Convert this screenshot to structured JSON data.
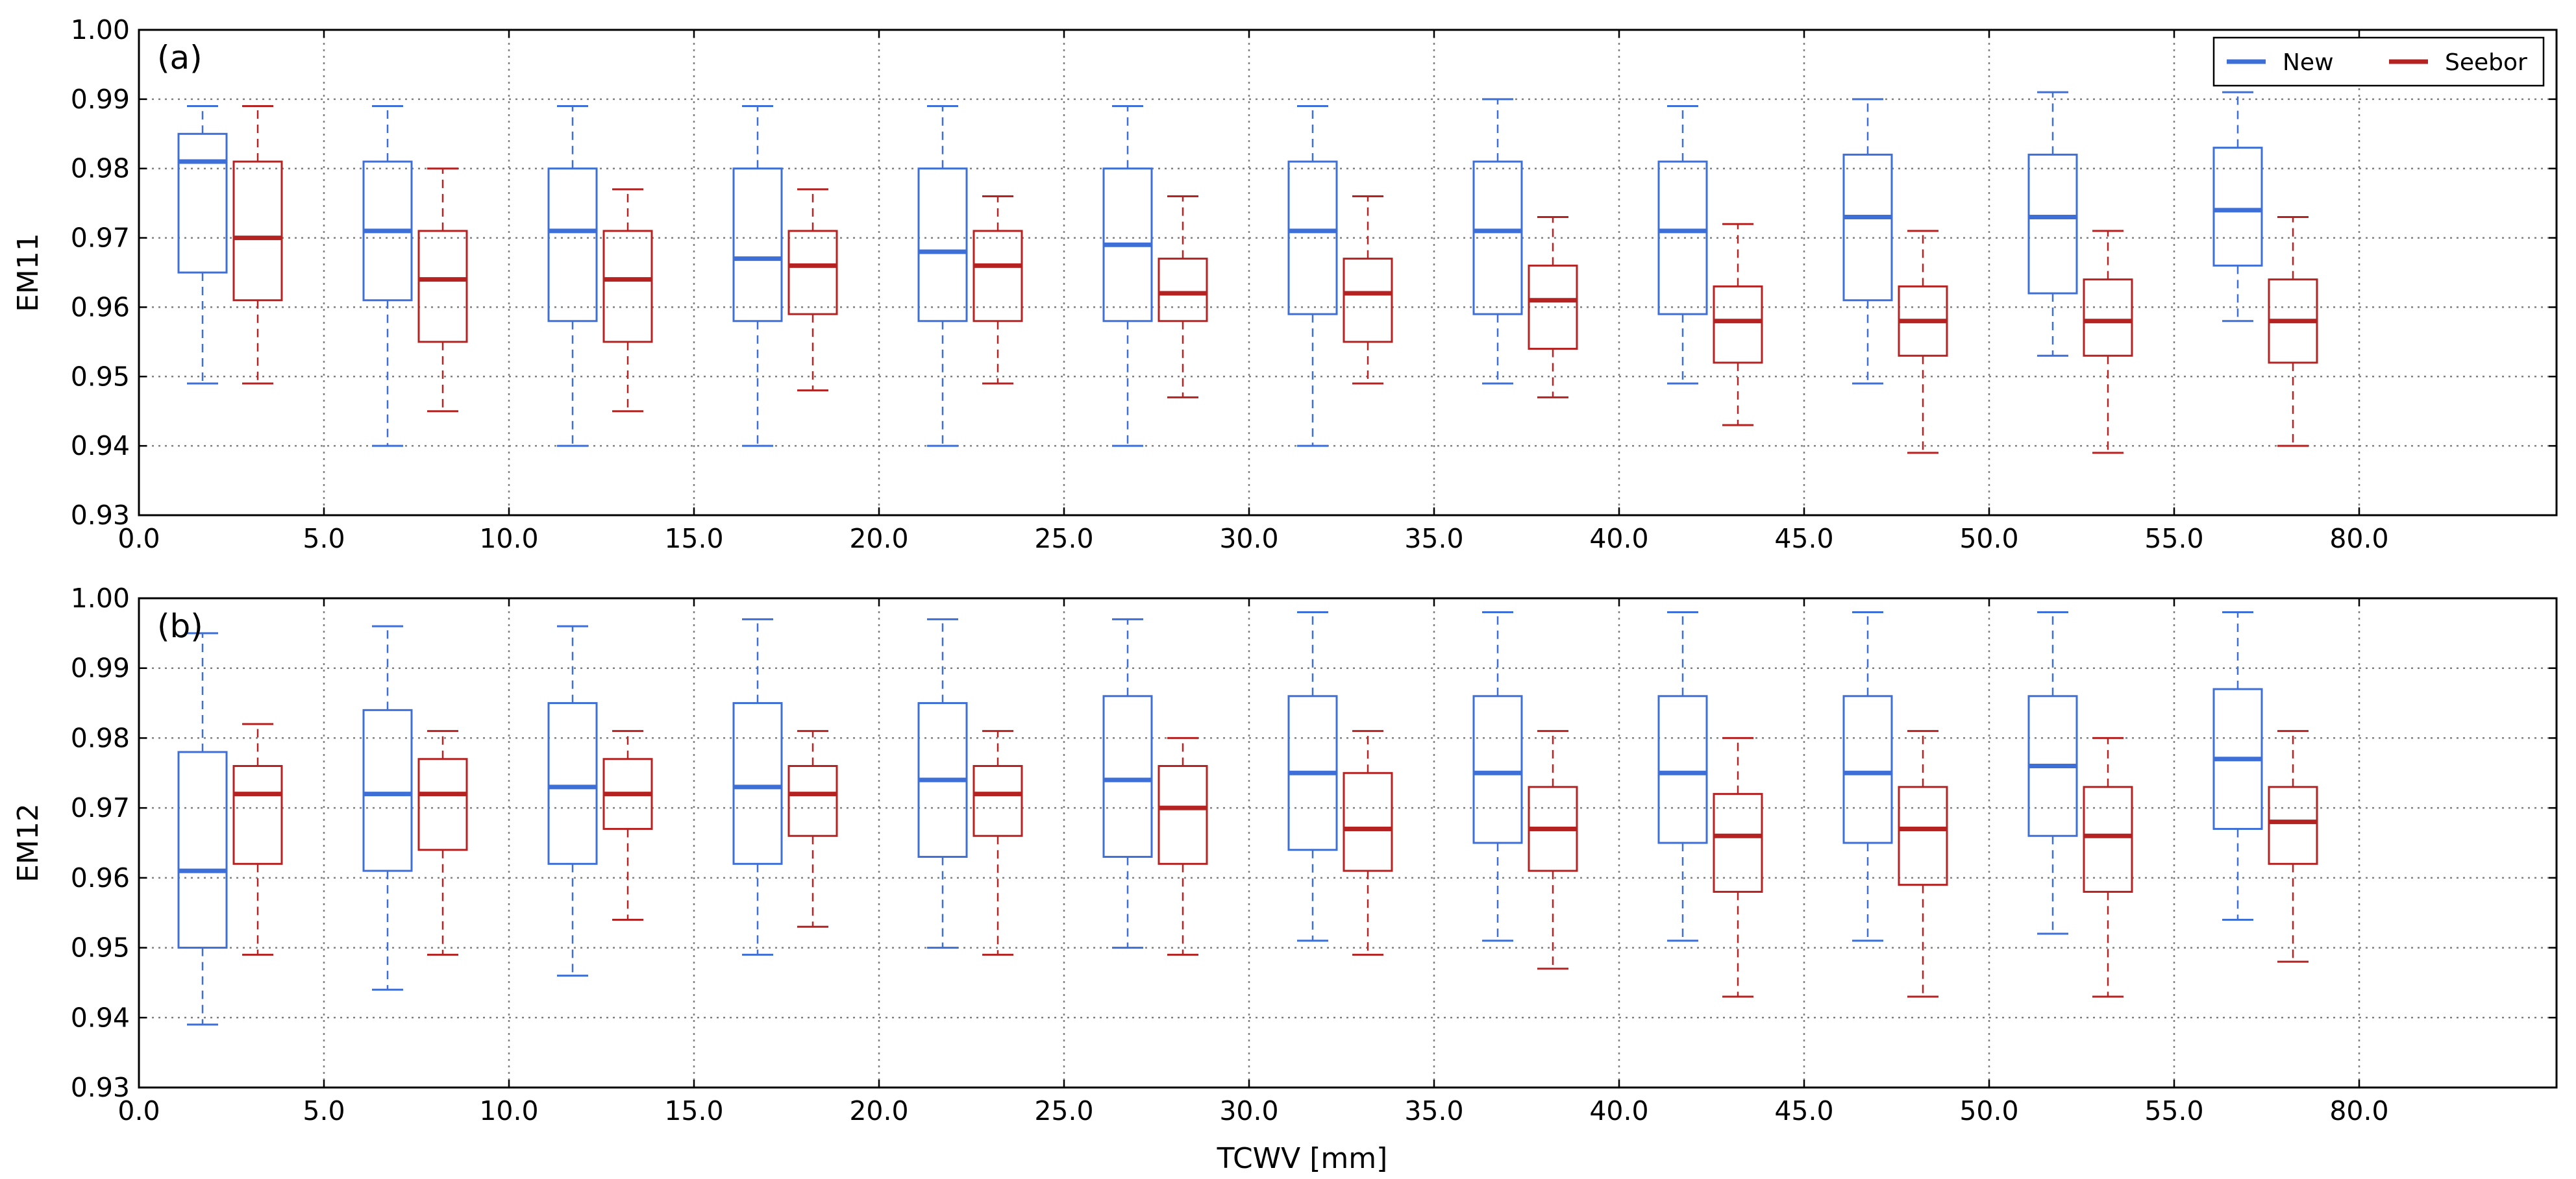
{
  "chart_data": [
    {
      "type": "box",
      "panel_label": "(a)",
      "ylabel": "EM11",
      "xlabel": "",
      "ylim": [
        0.93,
        1.0
      ],
      "yticks": [
        "0.93",
        "0.94",
        "0.95",
        "0.96",
        "0.97",
        "0.98",
        "0.99",
        "1.00"
      ],
      "xticks": [
        "0.0",
        "5.0",
        "10.0",
        "15.0",
        "20.0",
        "25.0",
        "30.0",
        "35.0",
        "40.0",
        "45.0",
        "50.0",
        "55.0",
        "80.0"
      ],
      "grid": true,
      "legend": {
        "placement": "top-right",
        "entries": [
          "New",
          "Seebor"
        ]
      },
      "series": [
        {
          "name": "New",
          "color": "#3d6fd6",
          "boxes": [
            {
              "bin": "0.0-5.0",
              "whislo": 0.949,
              "q1": 0.965,
              "median": 0.981,
              "q3": 0.985,
              "whishi": 0.989
            },
            {
              "bin": "5.0-10.0",
              "whislo": 0.94,
              "q1": 0.961,
              "median": 0.971,
              "q3": 0.981,
              "whishi": 0.989
            },
            {
              "bin": "10.0-15.0",
              "whislo": 0.94,
              "q1": 0.958,
              "median": 0.971,
              "q3": 0.98,
              "whishi": 0.989
            },
            {
              "bin": "15.0-20.0",
              "whislo": 0.94,
              "q1": 0.958,
              "median": 0.967,
              "q3": 0.98,
              "whishi": 0.989
            },
            {
              "bin": "20.0-25.0",
              "whislo": 0.94,
              "q1": 0.958,
              "median": 0.968,
              "q3": 0.98,
              "whishi": 0.989
            },
            {
              "bin": "25.0-30.0",
              "whislo": 0.94,
              "q1": 0.958,
              "median": 0.969,
              "q3": 0.98,
              "whishi": 0.989
            },
            {
              "bin": "30.0-35.0",
              "whislo": 0.94,
              "q1": 0.959,
              "median": 0.971,
              "q3": 0.981,
              "whishi": 0.989
            },
            {
              "bin": "35.0-40.0",
              "whislo": 0.949,
              "q1": 0.959,
              "median": 0.971,
              "q3": 0.981,
              "whishi": 0.99
            },
            {
              "bin": "40.0-45.0",
              "whislo": 0.949,
              "q1": 0.959,
              "median": 0.971,
              "q3": 0.981,
              "whishi": 0.989
            },
            {
              "bin": "45.0-50.0",
              "whislo": 0.949,
              "q1": 0.961,
              "median": 0.973,
              "q3": 0.982,
              "whishi": 0.99
            },
            {
              "bin": "50.0-55.0",
              "whislo": 0.953,
              "q1": 0.962,
              "median": 0.973,
              "q3": 0.982,
              "whishi": 0.991
            },
            {
              "bin": "55.0-80.0",
              "whislo": 0.958,
              "q1": 0.966,
              "median": 0.974,
              "q3": 0.983,
              "whishi": 0.991
            }
          ]
        },
        {
          "name": "Seebor",
          "color": "#b52222",
          "boxes": [
            {
              "bin": "0.0-5.0",
              "whislo": 0.949,
              "q1": 0.961,
              "median": 0.97,
              "q3": 0.981,
              "whishi": 0.989
            },
            {
              "bin": "5.0-10.0",
              "whislo": 0.945,
              "q1": 0.955,
              "median": 0.964,
              "q3": 0.971,
              "whishi": 0.98
            },
            {
              "bin": "10.0-15.0",
              "whislo": 0.945,
              "q1": 0.955,
              "median": 0.964,
              "q3": 0.971,
              "whishi": 0.977
            },
            {
              "bin": "15.0-20.0",
              "whislo": 0.948,
              "q1": 0.959,
              "median": 0.966,
              "q3": 0.971,
              "whishi": 0.977
            },
            {
              "bin": "20.0-25.0",
              "whislo": 0.949,
              "q1": 0.958,
              "median": 0.966,
              "q3": 0.971,
              "whishi": 0.976
            },
            {
              "bin": "25.0-30.0",
              "whislo": 0.947,
              "q1": 0.958,
              "median": 0.962,
              "q3": 0.967,
              "whishi": 0.976
            },
            {
              "bin": "30.0-35.0",
              "whislo": 0.949,
              "q1": 0.955,
              "median": 0.962,
              "q3": 0.967,
              "whishi": 0.976
            },
            {
              "bin": "35.0-40.0",
              "whislo": 0.947,
              "q1": 0.954,
              "median": 0.961,
              "q3": 0.966,
              "whishi": 0.973
            },
            {
              "bin": "40.0-45.0",
              "whislo": 0.943,
              "q1": 0.952,
              "median": 0.958,
              "q3": 0.963,
              "whishi": 0.972
            },
            {
              "bin": "45.0-50.0",
              "whislo": 0.939,
              "q1": 0.953,
              "median": 0.958,
              "q3": 0.963,
              "whishi": 0.971
            },
            {
              "bin": "50.0-55.0",
              "whislo": 0.939,
              "q1": 0.953,
              "median": 0.958,
              "q3": 0.964,
              "whishi": 0.971
            },
            {
              "bin": "55.0-80.0",
              "whislo": 0.94,
              "q1": 0.952,
              "median": 0.958,
              "q3": 0.964,
              "whishi": 0.973
            }
          ]
        }
      ]
    },
    {
      "type": "box",
      "panel_label": "(b)",
      "ylabel": "EM12",
      "xlabel": "TCWV [mm]",
      "ylim": [
        0.93,
        1.0
      ],
      "yticks": [
        "0.93",
        "0.94",
        "0.95",
        "0.96",
        "0.97",
        "0.98",
        "0.99",
        "1.00"
      ],
      "xticks": [
        "0.0",
        "5.0",
        "10.0",
        "15.0",
        "20.0",
        "25.0",
        "30.0",
        "35.0",
        "40.0",
        "45.0",
        "50.0",
        "55.0",
        "80.0"
      ],
      "grid": true,
      "series": [
        {
          "name": "New",
          "color": "#3d6fd6",
          "boxes": [
            {
              "bin": "0.0-5.0",
              "whislo": 0.939,
              "q1": 0.95,
              "median": 0.961,
              "q3": 0.978,
              "whishi": 0.995
            },
            {
              "bin": "5.0-10.0",
              "whislo": 0.944,
              "q1": 0.961,
              "median": 0.972,
              "q3": 0.984,
              "whishi": 0.996
            },
            {
              "bin": "10.0-15.0",
              "whislo": 0.946,
              "q1": 0.962,
              "median": 0.973,
              "q3": 0.985,
              "whishi": 0.996
            },
            {
              "bin": "15.0-20.0",
              "whislo": 0.949,
              "q1": 0.962,
              "median": 0.973,
              "q3": 0.985,
              "whishi": 0.997
            },
            {
              "bin": "20.0-25.0",
              "whislo": 0.95,
              "q1": 0.963,
              "median": 0.974,
              "q3": 0.985,
              "whishi": 0.997
            },
            {
              "bin": "25.0-30.0",
              "whislo": 0.95,
              "q1": 0.963,
              "median": 0.974,
              "q3": 0.986,
              "whishi": 0.997
            },
            {
              "bin": "30.0-35.0",
              "whislo": 0.951,
              "q1": 0.964,
              "median": 0.975,
              "q3": 0.986,
              "whishi": 0.998
            },
            {
              "bin": "35.0-40.0",
              "whislo": 0.951,
              "q1": 0.965,
              "median": 0.975,
              "q3": 0.986,
              "whishi": 0.998
            },
            {
              "bin": "40.0-45.0",
              "whislo": 0.951,
              "q1": 0.965,
              "median": 0.975,
              "q3": 0.986,
              "whishi": 0.998
            },
            {
              "bin": "45.0-50.0",
              "whislo": 0.951,
              "q1": 0.965,
              "median": 0.975,
              "q3": 0.986,
              "whishi": 0.998
            },
            {
              "bin": "50.0-55.0",
              "whislo": 0.952,
              "q1": 0.966,
              "median": 0.976,
              "q3": 0.986,
              "whishi": 0.998
            },
            {
              "bin": "55.0-80.0",
              "whislo": 0.954,
              "q1": 0.967,
              "median": 0.977,
              "q3": 0.987,
              "whishi": 0.998
            }
          ]
        },
        {
          "name": "Seebor",
          "color": "#b52222",
          "boxes": [
            {
              "bin": "0.0-5.0",
              "whislo": 0.949,
              "q1": 0.962,
              "median": 0.972,
              "q3": 0.976,
              "whishi": 0.982
            },
            {
              "bin": "5.0-10.0",
              "whislo": 0.949,
              "q1": 0.964,
              "median": 0.972,
              "q3": 0.977,
              "whishi": 0.981
            },
            {
              "bin": "10.0-15.0",
              "whislo": 0.954,
              "q1": 0.967,
              "median": 0.972,
              "q3": 0.977,
              "whishi": 0.981
            },
            {
              "bin": "15.0-20.0",
              "whislo": 0.953,
              "q1": 0.966,
              "median": 0.972,
              "q3": 0.976,
              "whishi": 0.981
            },
            {
              "bin": "20.0-25.0",
              "whislo": 0.949,
              "q1": 0.966,
              "median": 0.972,
              "q3": 0.976,
              "whishi": 0.981
            },
            {
              "bin": "25.0-30.0",
              "whislo": 0.949,
              "q1": 0.962,
              "median": 0.97,
              "q3": 0.976,
              "whishi": 0.98
            },
            {
              "bin": "30.0-35.0",
              "whislo": 0.949,
              "q1": 0.961,
              "median": 0.967,
              "q3": 0.975,
              "whishi": 0.981
            },
            {
              "bin": "35.0-40.0",
              "whislo": 0.947,
              "q1": 0.961,
              "median": 0.967,
              "q3": 0.973,
              "whishi": 0.981
            },
            {
              "bin": "40.0-45.0",
              "whislo": 0.943,
              "q1": 0.958,
              "median": 0.966,
              "q3": 0.972,
              "whishi": 0.98
            },
            {
              "bin": "45.0-50.0",
              "whislo": 0.943,
              "q1": 0.959,
              "median": 0.967,
              "q3": 0.973,
              "whishi": 0.981
            },
            {
              "bin": "50.0-55.0",
              "whislo": 0.943,
              "q1": 0.958,
              "median": 0.966,
              "q3": 0.973,
              "whishi": 0.98
            },
            {
              "bin": "55.0-80.0",
              "whislo": 0.948,
              "q1": 0.962,
              "median": 0.968,
              "q3": 0.973,
              "whishi": 0.981
            }
          ]
        }
      ]
    }
  ]
}
